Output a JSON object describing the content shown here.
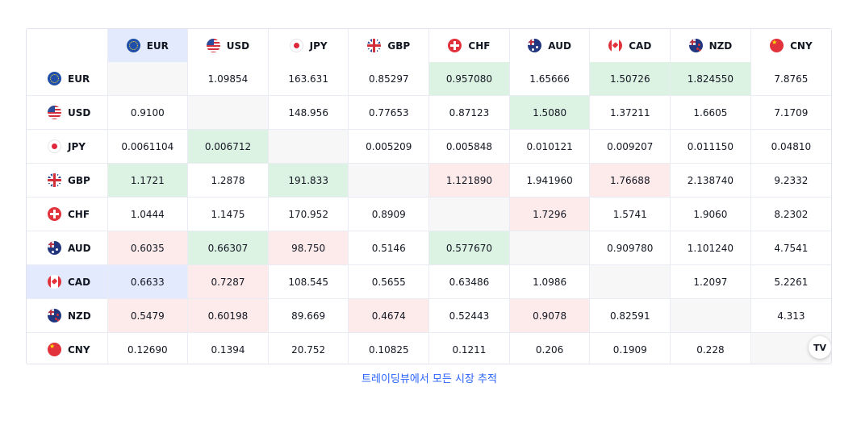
{
  "currencies": [
    {
      "code": "EUR",
      "flag": "eu-flag-icon"
    },
    {
      "code": "USD",
      "flag": "us-flag-icon"
    },
    {
      "code": "JPY",
      "flag": "japan-flag-icon"
    },
    {
      "code": "GBP",
      "flag": "uk-flag-icon"
    },
    {
      "code": "CHF",
      "flag": "swiss-flag-icon"
    },
    {
      "code": "AUD",
      "flag": "australia-flag-icon"
    },
    {
      "code": "CAD",
      "flag": "canada-flag-icon"
    },
    {
      "code": "NZD",
      "flag": "new-zealand-flag-icon"
    },
    {
      "code": "CNY",
      "flag": "china-flag-icon"
    }
  ],
  "rows": [
    {
      "code": "EUR",
      "cells": [
        {
          "v": "",
          "s": "empty"
        },
        {
          "v": "1.09854",
          "s": ""
        },
        {
          "v": "163.631",
          "s": ""
        },
        {
          "v": "0.85297",
          "s": ""
        },
        {
          "v": "0.957080",
          "s": "green"
        },
        {
          "v": "1.65666",
          "s": ""
        },
        {
          "v": "1.50726",
          "s": "green"
        },
        {
          "v": "1.824550",
          "s": "green"
        },
        {
          "v": "7.8765",
          "s": ""
        }
      ]
    },
    {
      "code": "USD",
      "cells": [
        {
          "v": "0.9100",
          "s": ""
        },
        {
          "v": "",
          "s": "empty"
        },
        {
          "v": "148.956",
          "s": ""
        },
        {
          "v": "0.77653",
          "s": ""
        },
        {
          "v": "0.87123",
          "s": ""
        },
        {
          "v": "1.5080",
          "s": "green"
        },
        {
          "v": "1.37211",
          "s": ""
        },
        {
          "v": "1.6605",
          "s": ""
        },
        {
          "v": "7.1709",
          "s": ""
        }
      ]
    },
    {
      "code": "JPY",
      "cells": [
        {
          "v": "0.0061104",
          "s": ""
        },
        {
          "v": "0.006712",
          "s": "green"
        },
        {
          "v": "",
          "s": "empty"
        },
        {
          "v": "0.005209",
          "s": ""
        },
        {
          "v": "0.005848",
          "s": ""
        },
        {
          "v": "0.010121",
          "s": ""
        },
        {
          "v": "0.009207",
          "s": ""
        },
        {
          "v": "0.011150",
          "s": ""
        },
        {
          "v": "0.04810",
          "s": ""
        }
      ]
    },
    {
      "code": "GBP",
      "cells": [
        {
          "v": "1.1721",
          "s": "green"
        },
        {
          "v": "1.2878",
          "s": ""
        },
        {
          "v": "191.833",
          "s": "green"
        },
        {
          "v": "",
          "s": "empty"
        },
        {
          "v": "1.121890",
          "s": "red"
        },
        {
          "v": "1.941960",
          "s": ""
        },
        {
          "v": "1.76688",
          "s": "red"
        },
        {
          "v": "2.138740",
          "s": ""
        },
        {
          "v": "9.2332",
          "s": ""
        }
      ]
    },
    {
      "code": "CHF",
      "cells": [
        {
          "v": "1.0444",
          "s": ""
        },
        {
          "v": "1.1475",
          "s": ""
        },
        {
          "v": "170.952",
          "s": ""
        },
        {
          "v": "0.8909",
          "s": ""
        },
        {
          "v": "",
          "s": "empty"
        },
        {
          "v": "1.7296",
          "s": "red"
        },
        {
          "v": "1.5741",
          "s": ""
        },
        {
          "v": "1.9060",
          "s": ""
        },
        {
          "v": "8.2302",
          "s": ""
        }
      ]
    },
    {
      "code": "AUD",
      "cells": [
        {
          "v": "0.6035",
          "s": "red"
        },
        {
          "v": "0.66307",
          "s": "green"
        },
        {
          "v": "98.750",
          "s": "red"
        },
        {
          "v": "0.5146",
          "s": ""
        },
        {
          "v": "0.577670",
          "s": "green"
        },
        {
          "v": "",
          "s": "empty"
        },
        {
          "v": "0.909780",
          "s": ""
        },
        {
          "v": "1.101240",
          "s": ""
        },
        {
          "v": "4.7541",
          "s": ""
        }
      ]
    },
    {
      "code": "CAD",
      "cells": [
        {
          "v": "0.6633",
          "s": "blue"
        },
        {
          "v": "0.7287",
          "s": "red"
        },
        {
          "v": "108.545",
          "s": ""
        },
        {
          "v": "0.5655",
          "s": ""
        },
        {
          "v": "0.63486",
          "s": ""
        },
        {
          "v": "1.0986",
          "s": ""
        },
        {
          "v": "",
          "s": "empty"
        },
        {
          "v": "1.2097",
          "s": ""
        },
        {
          "v": "5.2261",
          "s": ""
        }
      ]
    },
    {
      "code": "NZD",
      "cells": [
        {
          "v": "0.5479",
          "s": "red"
        },
        {
          "v": "0.60198",
          "s": "red"
        },
        {
          "v": "89.669",
          "s": ""
        },
        {
          "v": "0.4674",
          "s": "red"
        },
        {
          "v": "0.52443",
          "s": ""
        },
        {
          "v": "0.9078",
          "s": "red"
        },
        {
          "v": "0.82591",
          "s": ""
        },
        {
          "v": "",
          "s": "empty"
        },
        {
          "v": "4.313",
          "s": ""
        }
      ]
    },
    {
      "code": "CNY",
      "cells": [
        {
          "v": "0.12690",
          "s": ""
        },
        {
          "v": "0.1394",
          "s": ""
        },
        {
          "v": "20.752",
          "s": ""
        },
        {
          "v": "0.10825",
          "s": ""
        },
        {
          "v": "0.1211",
          "s": ""
        },
        {
          "v": "0.206",
          "s": ""
        },
        {
          "v": "0.1909",
          "s": ""
        },
        {
          "v": "0.228",
          "s": ""
        },
        {
          "v": "",
          "s": "empty"
        }
      ]
    }
  ],
  "highlight": {
    "column": "EUR",
    "row": "CAD"
  },
  "logo_text": "TV",
  "logo_icon": "tradingview-logo-icon",
  "footer_link": "트레이딩뷰에서 모든 시장 추적",
  "colors": {
    "up": "#dcf2e3",
    "down": "#fdebeb",
    "highlight": "#e3eafe",
    "empty": "#f7f7f7",
    "link": "#2962ff"
  }
}
